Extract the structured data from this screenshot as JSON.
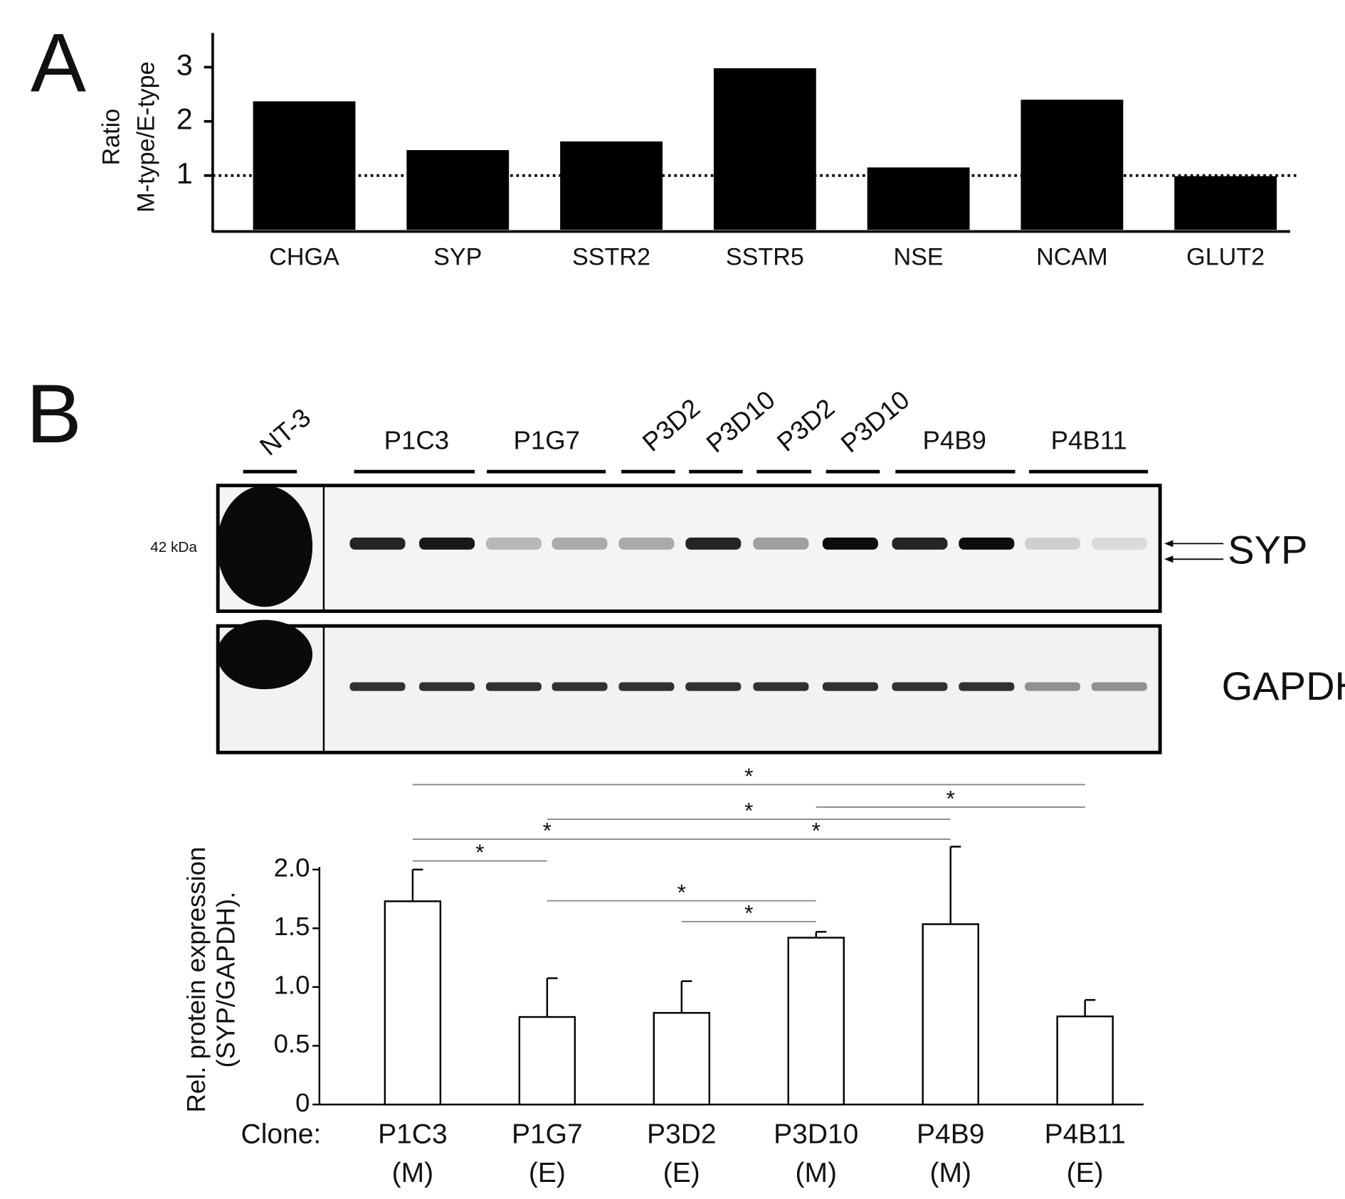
{
  "panels": [
    "A",
    "B"
  ],
  "blot": {
    "lanes": [
      "NT-3",
      "P1C3",
      "P1G7",
      "P3D2",
      "P3D10",
      "P3D2",
      "P3D10",
      "P4B9",
      "P4B11"
    ],
    "marker": "42 kDa",
    "targets": [
      "SYP",
      "GAPDH"
    ]
  },
  "chart_data": [
    {
      "type": "bar",
      "ylabel": [
        "Ratio",
        "M-type/E-type"
      ],
      "categories": [
        "CHGA",
        "SYP",
        "SSTR2",
        "SSTR5",
        "NSE",
        "NCAM",
        "GLUT2"
      ],
      "values": [
        2.37,
        1.47,
        1.63,
        2.98,
        1.15,
        2.4,
        0.99
      ],
      "color": "#000000",
      "ylim": [
        0,
        3.6
      ],
      "yticks": [
        1,
        2,
        3
      ],
      "reference_line": 1
    },
    {
      "type": "bar",
      "ylabel": [
        "Rel. protein expression",
        "(SYP/GAPDH)."
      ],
      "xlabel": "Clone:",
      "categories": [
        "P1C3",
        "P1G7",
        "P3D2",
        "P3D10",
        "P4B9",
        "P4B11"
      ],
      "category_sublabels": [
        "(M)",
        "(E)",
        "(E)",
        "(M)",
        "(M)",
        "(E)"
      ],
      "values": [
        1.73,
        0.745,
        0.78,
        1.42,
        1.535,
        0.75
      ],
      "errors": [
        0.27,
        0.33,
        0.27,
        0.05,
        0.66,
        0.14
      ],
      "color": "#ffffff",
      "ylim": [
        0,
        2.0
      ],
      "yticks": [
        {
          "value": 2,
          "label": "2.0"
        },
        {
          "value": 1.5,
          "label": "1.5"
        },
        {
          "value": 1,
          "label": "1.0"
        },
        {
          "value": 0.5,
          "label": "0.5"
        },
        0
      ],
      "significance": [
        {
          "pair": [
            0,
            5
          ],
          "label": "*"
        },
        {
          "pair": [
            3,
            5
          ],
          "label": "*"
        },
        {
          "pair": [
            1,
            4
          ],
          "label": "*"
        },
        {
          "pair": [
            0,
            2
          ],
          "label": "*"
        },
        {
          "pair": [
            2,
            4
          ],
          "label": "*"
        },
        {
          "pair": [
            0,
            1
          ],
          "label": "*"
        },
        {
          "pair": [
            1,
            3
          ],
          "label": "*"
        },
        {
          "pair": [
            2,
            3
          ],
          "label": "*"
        }
      ]
    }
  ]
}
